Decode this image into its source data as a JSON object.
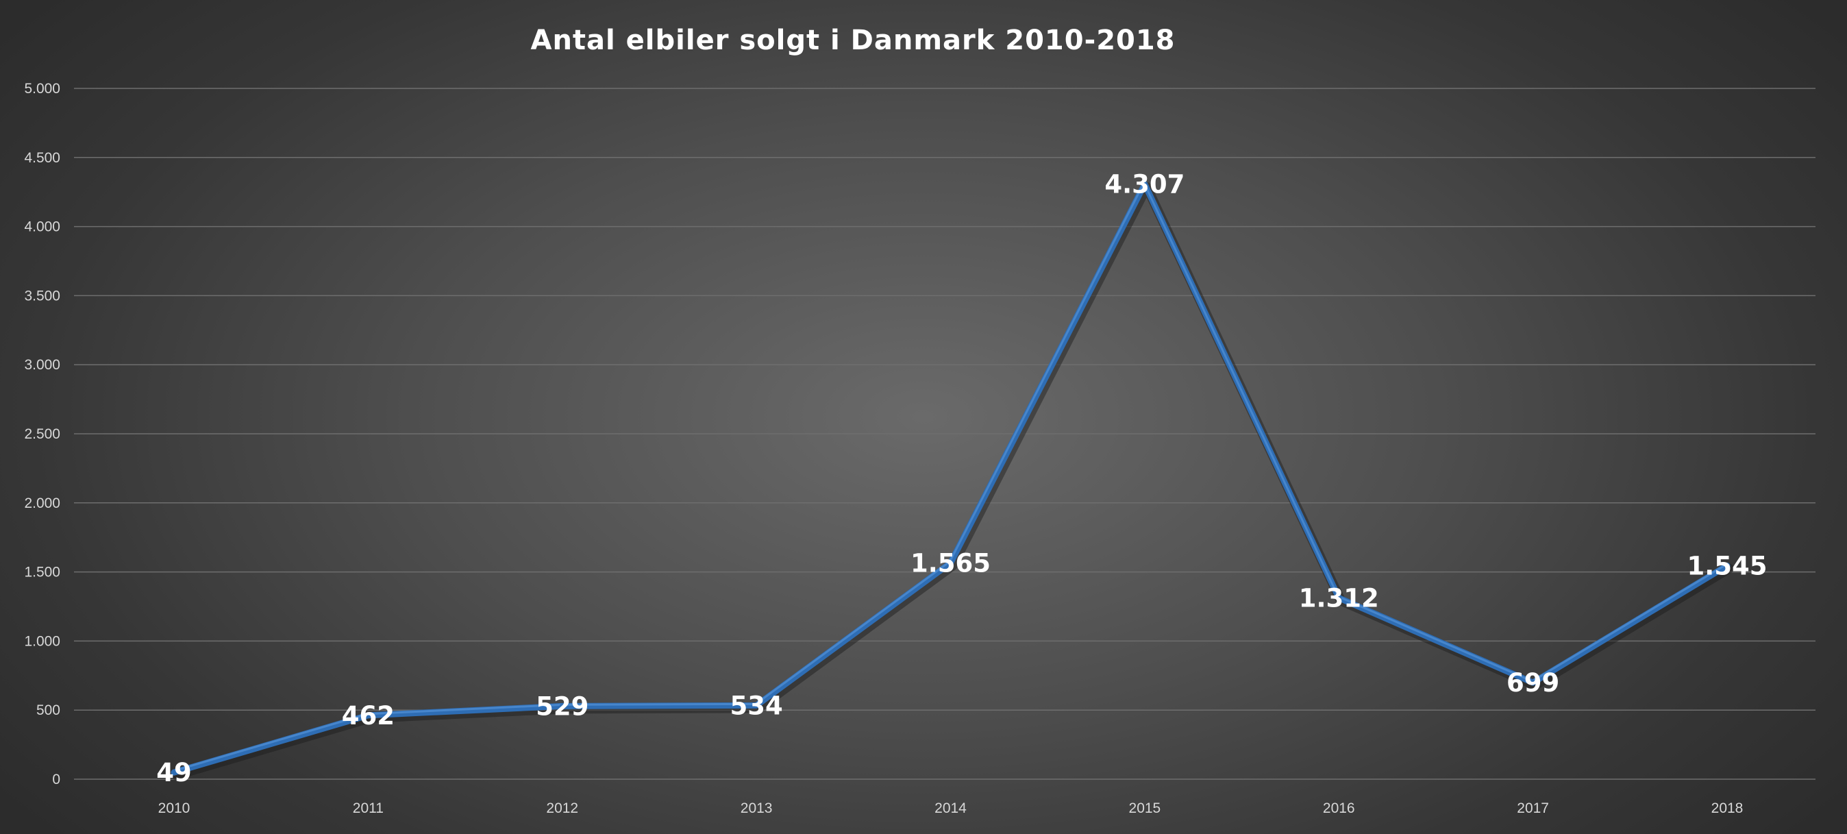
{
  "chart_data": {
    "type": "line",
    "title": "Antal  elbiler  solgt  i  Danmark  2010-2018",
    "categories": [
      "2010",
      "2011",
      "2012",
      "2013",
      "2014",
      "2015",
      "2016",
      "2017",
      "2018"
    ],
    "series": [
      {
        "values": [
          49,
          462,
          529,
          534,
          1565,
          4307,
          1312,
          699,
          1545
        ],
        "data_labels": [
          "49",
          "462",
          "529",
          "534",
          "1.565",
          "4.307",
          "1.312",
          "699",
          "1.545"
        ],
        "color": "#2e6db4"
      }
    ],
    "y_ticks": [
      {
        "value": 0,
        "label": "0"
      },
      {
        "value": 500,
        "label": "500"
      },
      {
        "value": 1000,
        "label": "1.000"
      },
      {
        "value": 1500,
        "label": "1.500"
      },
      {
        "value": 2000,
        "label": "2.000"
      },
      {
        "value": 2500,
        "label": "2.500"
      },
      {
        "value": 3000,
        "label": "3.000"
      },
      {
        "value": 3500,
        "label": "3.500"
      },
      {
        "value": 4000,
        "label": "4.000"
      },
      {
        "value": 4500,
        "label": "4.500"
      },
      {
        "value": 5000,
        "label": "5.000"
      }
    ],
    "ylim": [
      0,
      5000
    ],
    "xlabel": "",
    "ylabel": "",
    "grid": true,
    "legend": "none"
  }
}
